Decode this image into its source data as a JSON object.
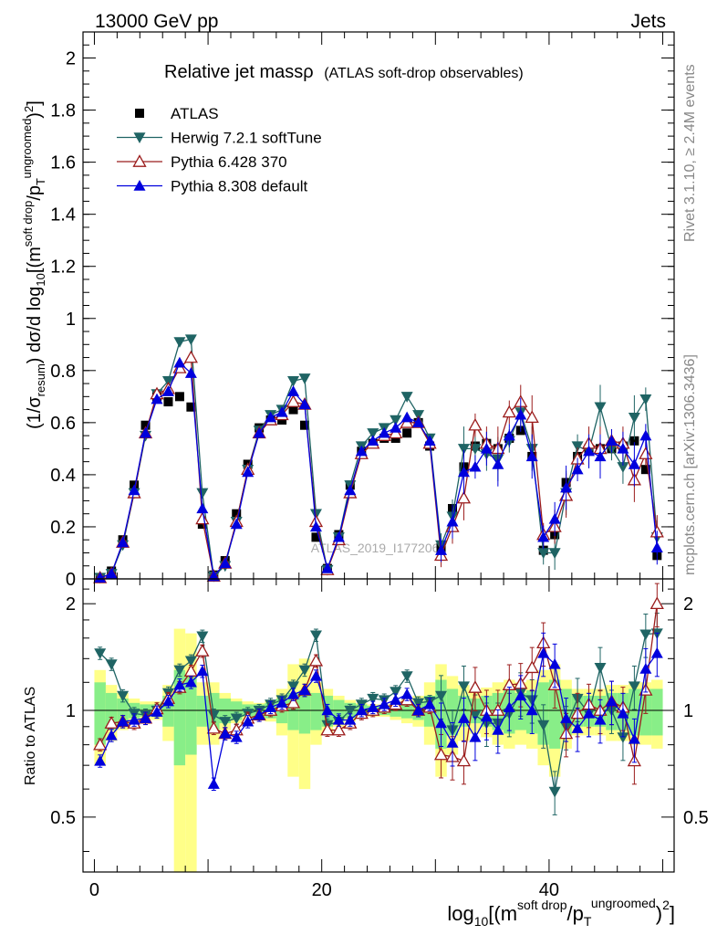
{
  "header": {
    "left": "13000 GeV pp",
    "right": "Jets"
  },
  "side_labels": {
    "rivet": "Rivet 3.1.10, ≥ 2.4M events",
    "mcplots": "mcplots.cern.ch [arXiv:1306.3436]"
  },
  "watermark": "ATLAS_2019_I1772062",
  "chart_data": [
    {
      "type": "scatter",
      "panel": "main",
      "title": "Relative jet massρ",
      "subtitle": "(ATLAS soft-drop observables)",
      "xlabel": "log10[(m^soft drop/pT^ungroomed)^2]",
      "ylabel": "(1/σresum) dσ/d log10[(m^soft drop/pT^ungroomed)^2]",
      "xlim": [
        -1,
        51
      ],
      "ylim": [
        0,
        2.1
      ],
      "x_ticks": [
        "0",
        "20",
        "40"
      ],
      "y_ticks": [
        "0",
        "0.2",
        "0.4",
        "0.6",
        "0.8",
        "1",
        "1.2",
        "1.4",
        "1.6",
        "1.8",
        "2"
      ],
      "legend": [
        "ATLAS",
        "Herwig 7.2.1 softTune",
        "Pythia 6.428 370",
        "Pythia 8.308 default"
      ],
      "series": [
        {
          "name": "ATLAS",
          "color": "#000000",
          "marker": "square",
          "values": [
            0.005,
            0.03,
            0.15,
            0.36,
            0.59,
            0.7,
            0.68,
            0.7,
            0.66,
            0.21,
            0.015,
            0.07,
            0.25,
            0.44,
            0.58,
            0.61,
            0.61,
            0.65,
            0.59,
            0.16,
            0.04,
            0.17,
            0.36,
            0.49,
            0.52,
            0.54,
            0.54,
            0.56,
            0.6,
            0.51,
            0.12,
            0.27,
            0.43,
            0.51,
            0.52,
            0.5,
            0.54,
            0.57,
            0.47,
            0.11,
            0.17,
            0.37,
            0.47,
            0.5,
            0.5,
            0.5,
            0.51,
            0.53,
            0.42,
            0.09
          ]
        },
        {
          "name": "Herwig 7.2.1 softTune",
          "color": "#1f6464",
          "marker": "triangle-down",
          "values": [
            0.005,
            0.02,
            0.13,
            0.33,
            0.55,
            0.71,
            0.76,
            0.91,
            0.92,
            0.33,
            0.01,
            0.05,
            0.22,
            0.42,
            0.57,
            0.63,
            0.65,
            0.76,
            0.77,
            0.25,
            0.035,
            0.16,
            0.36,
            0.51,
            0.56,
            0.58,
            0.61,
            0.7,
            0.63,
            0.54,
            0.13,
            0.24,
            0.5,
            0.5,
            0.48,
            0.46,
            0.53,
            0.64,
            0.5,
            0.1,
            0.1,
            0.33,
            0.51,
            0.49,
            0.66,
            0.5,
            0.43,
            0.62,
            0.69,
            0.16
          ]
        },
        {
          "name": "Pythia 6.428 370",
          "color": "#9b1c1c",
          "marker": "triangle-open",
          "values": [
            0.004,
            0.02,
            0.14,
            0.33,
            0.56,
            0.71,
            0.73,
            0.81,
            0.85,
            0.23,
            0.01,
            0.06,
            0.22,
            0.42,
            0.56,
            0.61,
            0.63,
            0.68,
            0.67,
            0.22,
            0.035,
            0.15,
            0.33,
            0.48,
            0.52,
            0.55,
            0.56,
            0.6,
            0.6,
            0.52,
            0.09,
            0.2,
            0.31,
            0.59,
            0.52,
            0.5,
            0.64,
            0.68,
            0.62,
            0.17,
            0.2,
            0.32,
            0.46,
            0.52,
            0.5,
            0.53,
            0.52,
            0.38,
            0.48,
            0.18
          ]
        },
        {
          "name": "Pythia 8.308 default",
          "color": "#0000dd",
          "marker": "triangle-up",
          "values": [
            0.004,
            0.02,
            0.14,
            0.34,
            0.56,
            0.69,
            0.72,
            0.83,
            0.79,
            0.27,
            0.01,
            0.06,
            0.21,
            0.41,
            0.56,
            0.62,
            0.64,
            0.72,
            0.67,
            0.2,
            0.04,
            0.16,
            0.34,
            0.49,
            0.53,
            0.56,
            0.58,
            0.62,
            0.6,
            0.53,
            0.11,
            0.22,
            0.41,
            0.43,
            0.5,
            0.44,
            0.55,
            0.63,
            0.47,
            0.16,
            0.23,
            0.35,
            0.42,
            0.49,
            0.47,
            0.53,
            0.5,
            0.44,
            0.55,
            0.12
          ]
        }
      ],
      "x": [
        0.5,
        1.5,
        2.5,
        3.5,
        4.5,
        5.5,
        6.5,
        7.5,
        8.5,
        9.5,
        10.5,
        11.5,
        12.5,
        13.5,
        14.5,
        15.5,
        16.5,
        17.5,
        18.5,
        19.5,
        20.5,
        21.5,
        22.5,
        23.5,
        24.5,
        25.5,
        26.5,
        27.5,
        28.5,
        29.5,
        30.5,
        31.5,
        32.5,
        33.5,
        34.5,
        35.5,
        36.5,
        37.5,
        38.5,
        39.5,
        40.5,
        41.5,
        42.5,
        43.5,
        44.5,
        45.5,
        46.5,
        47.5,
        48.5,
        49.5
      ]
    },
    {
      "type": "line",
      "panel": "ratio",
      "ylabel": "Ratio to ATLAS",
      "xlabel": "log10[(m^soft drop/pT^ungroomed)^2]",
      "xlim": [
        -1,
        51
      ],
      "ylim": [
        0.35,
        2.35
      ],
      "y_ticks": [
        "0.5",
        "1",
        "2"
      ],
      "x_ticks": [
        "0",
        "20",
        "40"
      ],
      "band_inner_halfwidth": [
        0.2,
        0.12,
        0.08,
        0.05,
        0.04,
        0.04,
        0.1,
        0.3,
        0.25,
        0.1,
        0.12,
        0.08,
        0.06,
        0.04,
        0.04,
        0.05,
        0.08,
        0.12,
        0.14,
        0.12,
        0.1,
        0.07,
        0.05,
        0.04,
        0.03,
        0.03,
        0.04,
        0.05,
        0.06,
        0.1,
        0.22,
        0.15,
        0.1,
        0.08,
        0.1,
        0.12,
        0.14,
        0.12,
        0.14,
        0.2,
        0.22,
        0.15,
        0.1,
        0.1,
        0.1,
        0.12,
        0.12,
        0.15,
        0.15,
        0.15
      ],
      "band_outer_halfwidth": [
        0.3,
        0.18,
        0.12,
        0.08,
        0.06,
        0.06,
        0.18,
        0.7,
        0.65,
        0.2,
        0.2,
        0.12,
        0.08,
        0.06,
        0.05,
        0.07,
        0.15,
        0.35,
        0.4,
        0.2,
        0.15,
        0.1,
        0.07,
        0.05,
        0.04,
        0.04,
        0.06,
        0.08,
        0.1,
        0.2,
        0.35,
        0.25,
        0.18,
        0.14,
        0.16,
        0.2,
        0.22,
        0.2,
        0.22,
        0.3,
        0.35,
        0.22,
        0.15,
        0.15,
        0.15,
        0.18,
        0.18,
        0.2,
        0.2,
        0.22
      ],
      "series": [
        {
          "name": "Herwig 7.2.1 softTune",
          "color": "#1f6464",
          "marker": "triangle-down",
          "values": [
            1.45,
            1.35,
            1.1,
            0.98,
            0.97,
            1.0,
            1.12,
            1.3,
            1.38,
            1.62,
            0.97,
            0.93,
            0.95,
            0.98,
            1.0,
            1.04,
            1.07,
            1.17,
            1.3,
            1.63,
            0.91,
            0.93,
            1.0,
            1.04,
            1.08,
            1.07,
            1.13,
            1.25,
            1.05,
            1.06,
            1.1,
            0.88,
            1.17,
            0.97,
            0.92,
            0.92,
            0.98,
            1.12,
            1.07,
            0.91,
            0.59,
            0.9,
            1.08,
            0.98,
            1.32,
            1.0,
            0.84,
            1.17,
            1.64,
            1.65
          ]
        },
        {
          "name": "Pythia 6.428 370",
          "color": "#9b1c1c",
          "marker": "triangle-open",
          "values": [
            0.8,
            0.92,
            0.93,
            0.92,
            0.95,
            1.01,
            1.08,
            1.16,
            1.29,
            1.47,
            0.89,
            0.86,
            0.88,
            0.95,
            0.97,
            1.0,
            1.03,
            1.05,
            1.14,
            1.38,
            0.88,
            0.88,
            0.92,
            0.98,
            1.0,
            1.02,
            1.04,
            1.07,
            1.0,
            1.02,
            0.75,
            0.74,
            0.72,
            1.16,
            1.0,
            1.0,
            1.18,
            1.19,
            1.32,
            1.55,
            1.18,
            0.86,
            0.98,
            1.04,
            1.0,
            1.06,
            1.02,
            0.72,
            1.14,
            2.0
          ]
        },
        {
          "name": "Pythia 8.308 default",
          "color": "#0000dd",
          "marker": "triangle-up",
          "values": [
            0.72,
            0.85,
            0.93,
            0.94,
            0.95,
            0.99,
            1.06,
            1.18,
            1.2,
            1.29,
            0.62,
            0.86,
            0.84,
            0.93,
            0.97,
            1.02,
            1.05,
            1.11,
            1.14,
            1.25,
            1.0,
            0.94,
            0.94,
            1.0,
            1.02,
            1.04,
            1.07,
            1.11,
            1.0,
            1.04,
            0.92,
            0.81,
            0.95,
            0.84,
            0.96,
            0.88,
            1.02,
            1.1,
            1.0,
            1.45,
            1.35,
            0.95,
            0.89,
            0.98,
            0.94,
            1.06,
            0.98,
            0.83,
            1.31,
            1.45
          ]
        }
      ]
    }
  ]
}
